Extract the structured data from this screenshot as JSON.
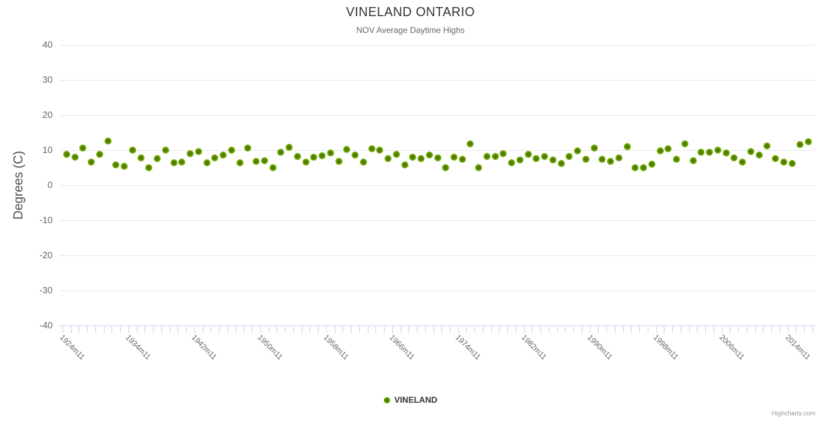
{
  "title": "VINELAND ONTARIO",
  "subtitle": "NOV Average Daytime Highs",
  "legend": {
    "label": "VINELAND"
  },
  "credits": "Highcharts.com",
  "colors": {
    "point": "#74ad02",
    "grid": "#e6e6e6",
    "axis": "#ccd6eb",
    "title": "#333333",
    "subtitle": "#666666",
    "labels": "#666666"
  },
  "chart_data": {
    "type": "scatter",
    "title": "VINELAND ONTARIO",
    "subtitle": "NOV Average Daytime Highs",
    "xlabel": "",
    "ylabel": "Degrees (C)",
    "ylim": [
      -40,
      40
    ],
    "yticks": [
      40,
      30,
      20,
      10,
      0,
      -10,
      -20,
      -30,
      -40
    ],
    "grid": "horizontal",
    "legend_position": "bottom-center",
    "x_tick_labels": [
      {
        "i": 0,
        "label": "1924m11"
      },
      {
        "i": 8,
        "label": "1934m11"
      },
      {
        "i": 16,
        "label": "1942m11"
      },
      {
        "i": 24,
        "label": "1950m11"
      },
      {
        "i": 32,
        "label": "1958m11"
      },
      {
        "i": 40,
        "label": "1966m11"
      },
      {
        "i": 48,
        "label": "1974m11"
      },
      {
        "i": 56,
        "label": "1982m11"
      },
      {
        "i": 64,
        "label": "1990m11"
      },
      {
        "i": 72,
        "label": "1998m11"
      },
      {
        "i": 80,
        "label": "2006m11"
      },
      {
        "i": 88,
        "label": "2014m11"
      }
    ],
    "series": [
      {
        "name": "VINELAND",
        "color": "#74ad02",
        "values": [
          8.8,
          8.0,
          10.6,
          6.6,
          8.8,
          12.7,
          5.8,
          5.4,
          10.0,
          7.8,
          5.0,
          7.6,
          10.1,
          6.4,
          6.6,
          9.0,
          9.7,
          6.4,
          7.8,
          8.6,
          10.1,
          6.4,
          10.7,
          6.8,
          7.0,
          5.1,
          9.4,
          10.9,
          8.2,
          6.6,
          8.0,
          8.4,
          9.2,
          6.8,
          10.3,
          8.6,
          6.6,
          10.5,
          10.1,
          7.6,
          8.8,
          5.9,
          8.0,
          7.6,
          8.6,
          7.8,
          5.0,
          8.0,
          7.4,
          11.9,
          5.0,
          8.2,
          8.2,
          9.0,
          6.4,
          7.2,
          8.8,
          7.6,
          8.2,
          7.2,
          6.2,
          8.2,
          9.9,
          7.4,
          10.7,
          7.4,
          6.8,
          7.8,
          11.1,
          5.0,
          5.0,
          6.0,
          9.9,
          10.5,
          7.4,
          11.9,
          7.0,
          9.4,
          9.4,
          10.1,
          9.2,
          7.8,
          6.6,
          9.7,
          8.6,
          11.3,
          7.6,
          6.6,
          6.2,
          11.7,
          12.5
        ]
      }
    ]
  }
}
